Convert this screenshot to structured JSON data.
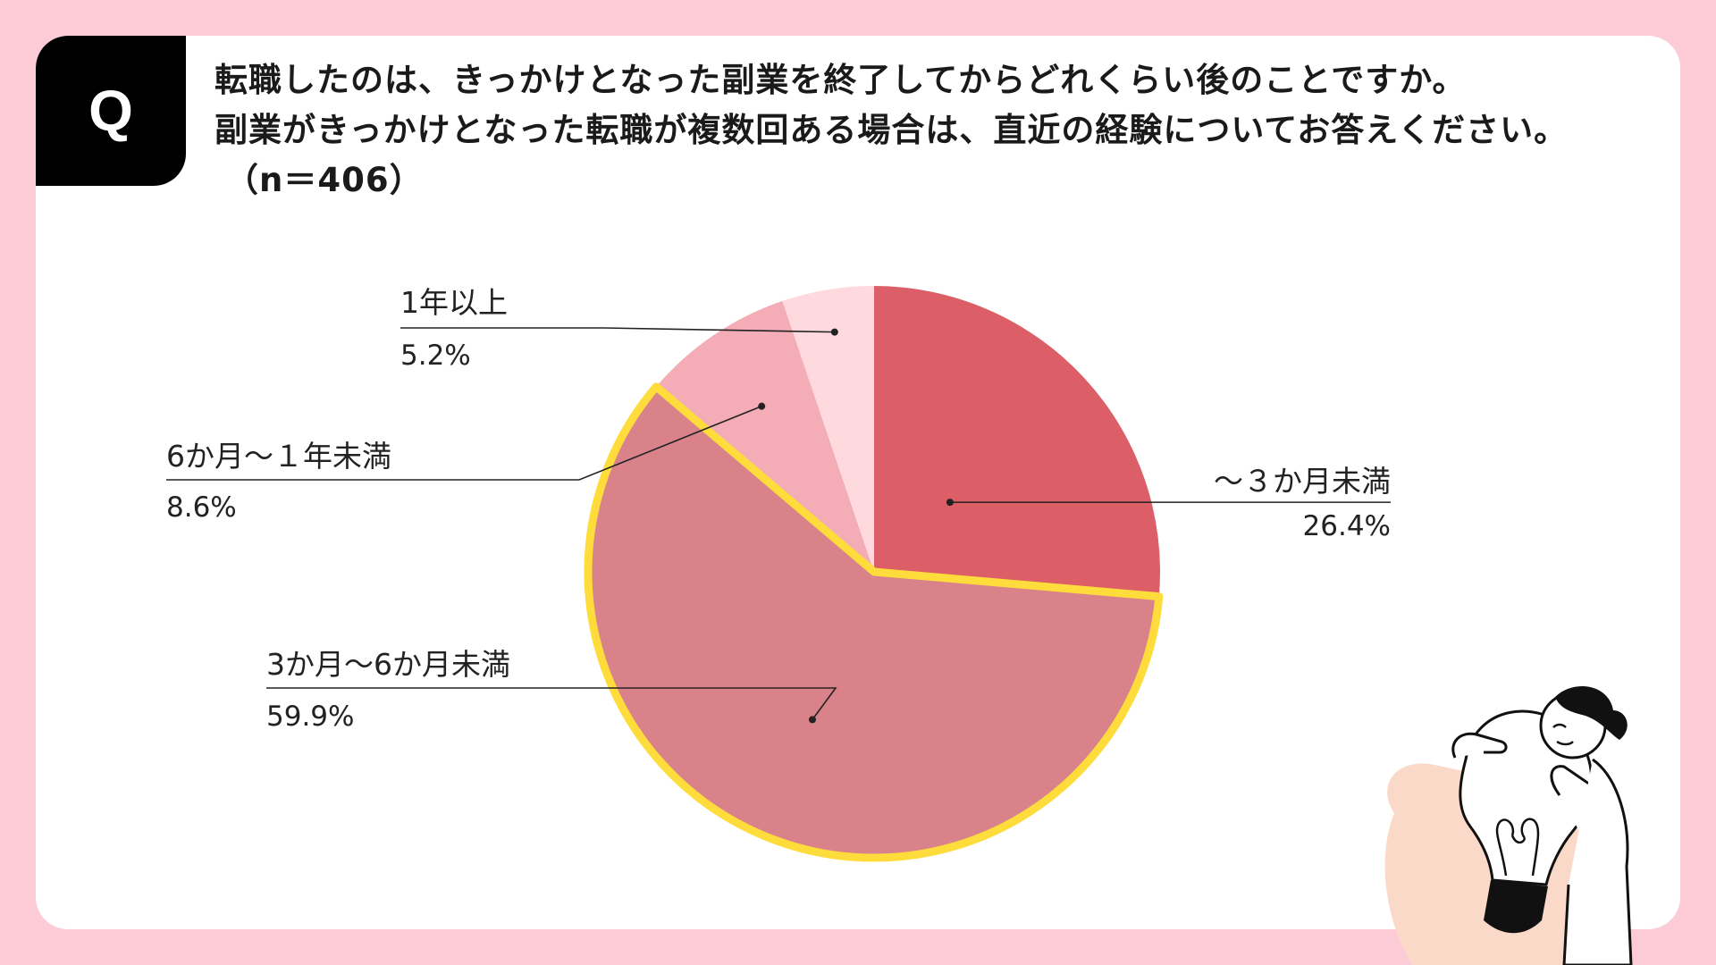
{
  "badge": {
    "letter": "Q"
  },
  "question": {
    "line1": "転職したのは、きっかけとなった副業を終了してからどれくらい後のことですか。",
    "line2": "副業がきっかけとなった転職が複数回ある場合は、直近の経験についてお答えください。",
    "sample": "（n＝406）"
  },
  "colors": {
    "background": "#fccbd5",
    "card": "#ffffff",
    "highlight": "#fedc3c"
  },
  "chart_data": {
    "type": "pie",
    "start": "12 o'clock, clockwise",
    "highlighted": "3か月～6か月未満",
    "slices": [
      {
        "label": "～３か月未満",
        "value": 26.4,
        "pct_label": "26.4%",
        "color": "#dc5f68"
      },
      {
        "label": "3か月～6か月未満",
        "value": 59.9,
        "pct_label": "59.9%",
        "color": "#da828a"
      },
      {
        "label": "6か月～１年未満",
        "value": 8.6,
        "pct_label": "8.6%",
        "color": "#f4adb6"
      },
      {
        "label": "1年以上",
        "value": 5.2,
        "pct_label": "5.2%",
        "color": "#fed9de"
      }
    ]
  },
  "illustration": {
    "icon": "person-with-lightbulb-icon"
  }
}
